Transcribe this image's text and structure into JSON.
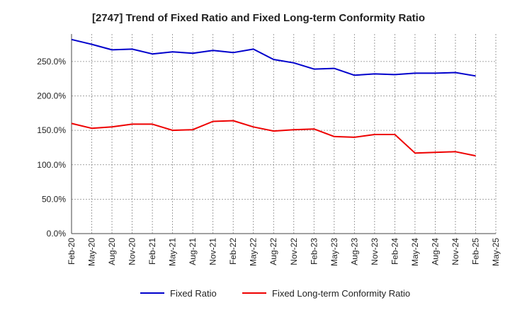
{
  "chart_data": {
    "type": "line",
    "title": "[2747]  Trend of Fixed Ratio and Fixed Long-term Conformity Ratio",
    "x": [
      "Feb-20",
      "May-20",
      "Aug-20",
      "Nov-20",
      "Feb-21",
      "May-21",
      "Aug-21",
      "Nov-21",
      "Feb-22",
      "May-22",
      "Aug-22",
      "Nov-22",
      "Feb-23",
      "May-23",
      "Aug-23",
      "Nov-23",
      "Feb-24",
      "May-24",
      "Aug-24",
      "Nov-24",
      "Feb-25",
      "May-25"
    ],
    "ytick_labels": [
      "0.0%",
      "50.0%",
      "100.0%",
      "150.0%",
      "200.0%",
      "250.0%"
    ],
    "ylim": [
      0,
      290
    ],
    "grid": true,
    "legend_position": "bottom-center",
    "series": [
      {
        "name": "Fixed Ratio",
        "color": "#0000cc",
        "values": [
          282,
          275,
          267,
          268,
          261,
          264,
          262,
          266,
          263,
          268,
          253,
          248,
          239,
          240,
          230,
          232,
          231,
          233,
          233,
          234,
          229,
          null
        ]
      },
      {
        "name": "Fixed Long-term Conformity Ratio",
        "color": "#ee0000",
        "values": [
          160,
          153,
          155,
          159,
          159,
          150,
          151,
          163,
          164,
          155,
          149,
          151,
          152,
          141,
          140,
          144,
          144,
          117,
          118,
          119,
          113,
          null
        ]
      }
    ]
  }
}
